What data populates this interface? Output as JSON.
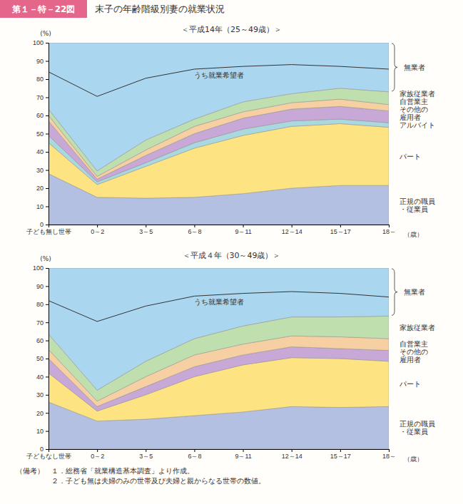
{
  "header": {
    "figure_no": "第１－特－22図",
    "title": "末子の年齢階級別妻の就業状況"
  },
  "notes": {
    "label": "（備考）",
    "items": [
      "１．総務省「就業構造基本調査」より作成。",
      "２．子ども無は夫婦のみの世帯及び夫婦と親からなる世帯の数値。"
    ]
  },
  "chart_data": [
    {
      "type": "area",
      "stacked": true,
      "grid": false,
      "title": "＜平成14年（25～49歳）＞",
      "x_label": "（歳）",
      "y_label": "(%)",
      "categories": [
        "子ども無し世帯",
        "0～2",
        "3～5",
        "6～8",
        "9～11",
        "12～14",
        "15～17",
        "18～"
      ],
      "ylim": [
        0,
        100
      ],
      "yticks": [
        0,
        10,
        20,
        30,
        40,
        50,
        60,
        70,
        80,
        90,
        100
      ],
      "series": [
        {
          "name": "正規の職員・従業員",
          "color": "#b3c0e2",
          "values": [
            28,
            15,
            14.5,
            15,
            17,
            20,
            21.5,
            21.5
          ]
        },
        {
          "name": "パート",
          "color": "#fee383",
          "values": [
            17,
            7,
            17.5,
            27,
            32,
            34,
            34,
            32
          ]
        },
        {
          "name": "アルバイト",
          "color": "#a9d9df",
          "values": [
            4,
            1.5,
            2,
            3,
            3.5,
            3,
            2.5,
            2.5
          ]
        },
        {
          "name": "その他の雇用者",
          "color": "#c7a8d6",
          "values": [
            8,
            1.5,
            4,
            5,
            6,
            6.5,
            7,
            6.5
          ]
        },
        {
          "name": "自営業主",
          "color": "#f6cfa2",
          "values": [
            3,
            1.5,
            3,
            4,
            3.5,
            3.5,
            4,
            3.5
          ]
        },
        {
          "name": "家族従業者",
          "color": "#c0dfae",
          "values": [
            3.5,
            3,
            5.5,
            4,
            5.5,
            5,
            6,
            7
          ]
        },
        {
          "name": "無業者",
          "color": "#abd6ef",
          "values": [
            36.5,
            70.5,
            53.5,
            42,
            32.5,
            28,
            25,
            27
          ],
          "included": {
            "name": "うち就業希望者",
            "values": [
              20.5,
              41,
              34,
              27.5,
              19.5,
              16,
              12,
              12.5
            ]
          }
        }
      ]
    },
    {
      "type": "area",
      "stacked": true,
      "grid": false,
      "title": "＜平成４年（30～49歳）＞",
      "x_label": "（歳）",
      "y_label": "(%)",
      "categories": [
        "子どもなし世帯",
        "0～2",
        "3～5",
        "6～8",
        "9～11",
        "12～14",
        "15～17",
        "18～"
      ],
      "ylim": [
        0,
        100
      ],
      "yticks": [
        0,
        10,
        20,
        30,
        40,
        50,
        60,
        70,
        80,
        90,
        100
      ],
      "series": [
        {
          "name": "正規の職員・従業員",
          "color": "#b3c0e2",
          "values": [
            26,
            15.5,
            16.5,
            18.5,
            20.5,
            23.5,
            23,
            23.5
          ]
        },
        {
          "name": "パート",
          "color": "#fee383",
          "values": [
            16,
            5.5,
            13.5,
            21.5,
            26,
            27,
            27,
            25
          ]
        },
        {
          "name": "その他の雇用者",
          "color": "#c7a8d6",
          "values": [
            8,
            2.5,
            4.5,
            5.5,
            5.5,
            6,
            5.5,
            6
          ]
        },
        {
          "name": "自営業主",
          "color": "#f6cfa2",
          "values": [
            5,
            3,
            5.5,
            6.5,
            6,
            6,
            6.5,
            6.5
          ]
        },
        {
          "name": "家族従業者",
          "color": "#c0dfae",
          "values": [
            8.5,
            6,
            8.5,
            9,
            10,
            10.5,
            11,
            12.5
          ]
        },
        {
          "name": "無業者",
          "color": "#abd6ef",
          "values": [
            36.5,
            67.5,
            51.5,
            39,
            32,
            27,
            27,
            26.5
          ],
          "included": {
            "name": "うち就業希望者",
            "values": [
              18.5,
              38,
              30.5,
              23.5,
              18,
              14,
              13,
              10.5
            ]
          }
        }
      ]
    }
  ]
}
